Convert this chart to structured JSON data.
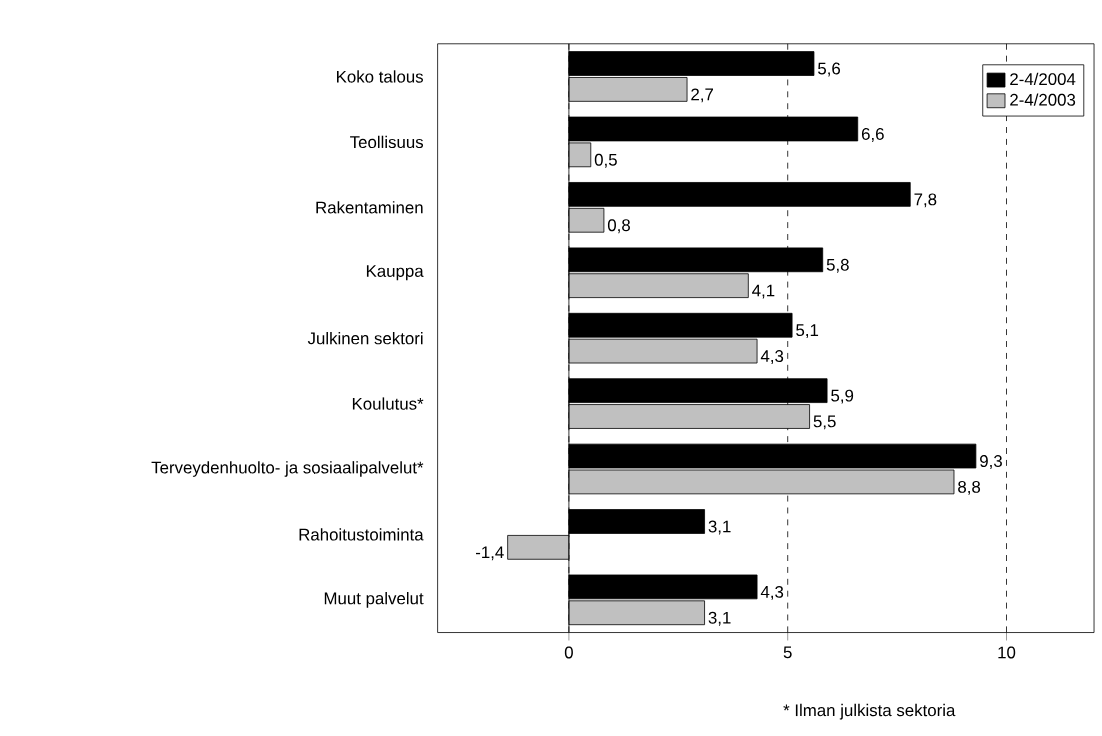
{
  "chart_data": {
    "type": "bar",
    "orientation": "horizontal",
    "categories": [
      "Koko talous",
      "Teollisuus",
      "Rakentaminen",
      "Kauppa",
      "Julkinen sektori",
      "Koulutus*",
      "Terveydenhuolto- ja sosiaalipalvelut*",
      "Rahoitustoiminta",
      "Muut palvelut"
    ],
    "series": [
      {
        "name": "2-4/2004",
        "color": "#000000",
        "values": [
          5.6,
          6.6,
          7.8,
          5.8,
          5.1,
          5.9,
          9.3,
          3.1,
          4.3
        ],
        "value_labels": [
          "5,6",
          "6,6",
          "7,8",
          "5,8",
          "5,1",
          "5,9",
          "9,3",
          "3,1",
          "4,3"
        ]
      },
      {
        "name": "2-4/2003",
        "color": "#c0c0c0",
        "values": [
          2.7,
          0.5,
          0.8,
          4.1,
          4.3,
          5.5,
          8.8,
          -1.4,
          3.1
        ],
        "value_labels": [
          "2,7",
          "0,5",
          "0,8",
          "4,1",
          "4,3",
          "5,5",
          "8,8",
          "-1,4",
          "3,1"
        ]
      }
    ],
    "xlim": [
      -3,
      12
    ],
    "xticks": [
      0,
      5,
      10
    ],
    "grid": "x",
    "legend": "top right",
    "ref_lines": [
      {
        "axis": "x",
        "value": 0
      }
    ],
    "annotations": [
      "* Ilman julkista sektoria"
    ]
  }
}
